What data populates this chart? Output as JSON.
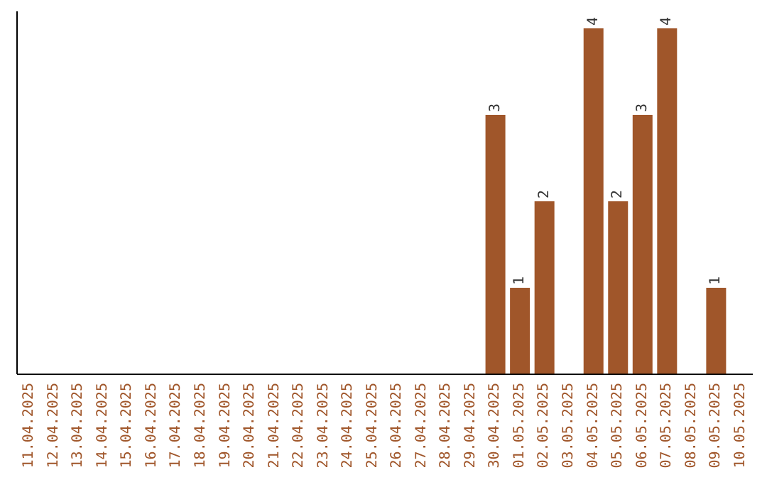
{
  "chart_data": {
    "type": "bar",
    "categories": [
      "11.04.2025",
      "12.04.2025",
      "13.04.2025",
      "14.04.2025",
      "15.04.2025",
      "16.04.2025",
      "17.04.2025",
      "18.04.2025",
      "19.04.2025",
      "20.04.2025",
      "21.04.2025",
      "22.04.2025",
      "23.04.2025",
      "24.04.2025",
      "25.04.2025",
      "26.04.2025",
      "27.04.2025",
      "28.04.2025",
      "29.04.2025",
      "30.04.2025",
      "01.05.2025",
      "02.05.2025",
      "03.05.2025",
      "04.05.2025",
      "05.05.2025",
      "06.05.2025",
      "07.05.2025",
      "08.05.2025",
      "09.05.2025",
      "10.05.2025"
    ],
    "values": [
      null,
      null,
      null,
      null,
      null,
      null,
      null,
      null,
      null,
      null,
      null,
      null,
      null,
      null,
      null,
      null,
      null,
      null,
      null,
      3,
      1,
      2,
      null,
      4,
      2,
      3,
      4,
      null,
      1,
      null
    ],
    "value_labels": [
      null,
      null,
      null,
      null,
      null,
      null,
      null,
      null,
      null,
      null,
      null,
      null,
      null,
      null,
      null,
      null,
      null,
      null,
      null,
      "3",
      "1",
      "2",
      null,
      "4",
      "2",
      "3",
      "4",
      null,
      "1",
      null
    ],
    "color": "#a0562a"
  }
}
